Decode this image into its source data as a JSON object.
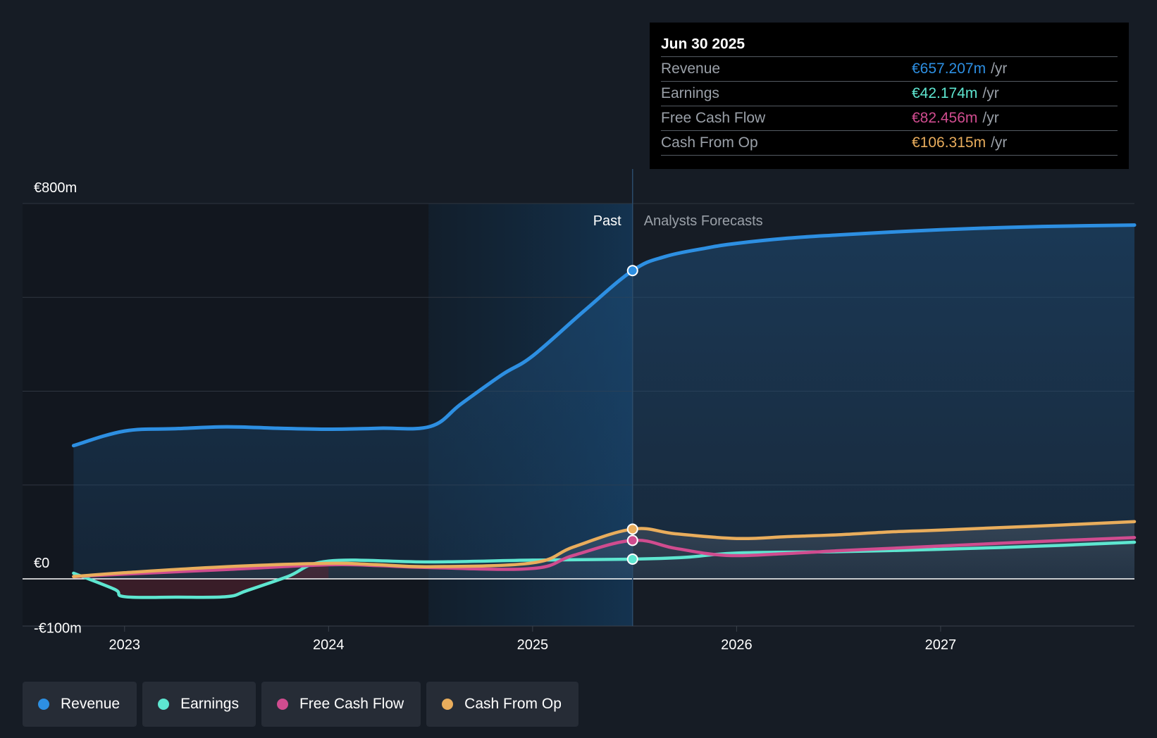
{
  "tooltip": {
    "date": "Jun 30 2025",
    "rows": [
      {
        "name": "Revenue",
        "value": "€657.207m",
        "unit": "/yr",
        "color": "#2d8fe2"
      },
      {
        "name": "Earnings",
        "value": "€42.174m",
        "unit": "/yr",
        "color": "#5ee6d0"
      },
      {
        "name": "Free Cash Flow",
        "value": "€82.456m",
        "unit": "/yr",
        "color": "#d04c8f"
      },
      {
        "name": "Cash From Op",
        "value": "€106.315m",
        "unit": "/yr",
        "color": "#e9ad5c"
      }
    ]
  },
  "legend": [
    {
      "label": "Revenue",
      "color": "#2d8fe2"
    },
    {
      "label": "Earnings",
      "color": "#5ee6d0"
    },
    {
      "label": "Free Cash Flow",
      "color": "#d04c8f"
    },
    {
      "label": "Cash From Op",
      "color": "#e9ad5c"
    }
  ],
  "chart_data": {
    "type": "line",
    "title": "",
    "y_labels": {
      "top": "€800m",
      "zero": "€0",
      "bottom": "-€100m"
    },
    "ylim": [
      -100,
      800
    ],
    "xlim": [
      2022.5,
      2027.95
    ],
    "x_ticks": [
      2023,
      2024,
      2025,
      2026,
      2027
    ],
    "x_tick_labels": [
      "2023",
      "2024",
      "2025",
      "2026",
      "2027"
    ],
    "region_labels": {
      "past": "Past",
      "forecast": "Analysts Forecasts"
    },
    "past_end": 2025.49,
    "highlight_start": 2024.49,
    "series": [
      {
        "name": "Revenue",
        "color": "#2d8fe2",
        "fill": true,
        "points": [
          [
            2022.75,
            284
          ],
          [
            2023.0,
            315
          ],
          [
            2023.25,
            320
          ],
          [
            2023.5,
            324
          ],
          [
            2023.75,
            321
          ],
          [
            2024.0,
            319
          ],
          [
            2024.25,
            321
          ],
          [
            2024.5,
            325
          ],
          [
            2024.65,
            373
          ],
          [
            2024.85,
            435
          ],
          [
            2025.0,
            475
          ],
          [
            2025.25,
            570
          ],
          [
            2025.49,
            657
          ],
          [
            2025.65,
            687
          ],
          [
            2025.85,
            705
          ],
          [
            2026.0,
            715
          ],
          [
            2026.25,
            726
          ],
          [
            2026.5,
            733
          ],
          [
            2026.75,
            739
          ],
          [
            2027.0,
            744
          ],
          [
            2027.25,
            748
          ],
          [
            2027.5,
            751
          ],
          [
            2027.95,
            754
          ]
        ]
      },
      {
        "name": "Earnings",
        "color": "#5ee6d0",
        "points": [
          [
            2022.75,
            12
          ],
          [
            2022.95,
            -22
          ],
          [
            2023.0,
            -38
          ],
          [
            2023.25,
            -39
          ],
          [
            2023.5,
            -38
          ],
          [
            2023.6,
            -25
          ],
          [
            2023.8,
            5
          ],
          [
            2024.0,
            38
          ],
          [
            2024.5,
            36
          ],
          [
            2025.0,
            40
          ],
          [
            2025.49,
            42
          ],
          [
            2025.75,
            46
          ],
          [
            2026.0,
            55
          ],
          [
            2026.5,
            58
          ],
          [
            2027.0,
            63
          ],
          [
            2027.5,
            70
          ],
          [
            2027.95,
            78
          ]
        ]
      },
      {
        "name": "Free Cash Flow",
        "color": "#d04c8f",
        "points": [
          [
            2022.75,
            5
          ],
          [
            2023.0,
            10
          ],
          [
            2023.5,
            20
          ],
          [
            2024.0,
            30
          ],
          [
            2024.25,
            28
          ],
          [
            2024.5,
            24
          ],
          [
            2025.0,
            22
          ],
          [
            2025.2,
            50
          ],
          [
            2025.49,
            82
          ],
          [
            2025.7,
            65
          ],
          [
            2025.95,
            50
          ],
          [
            2026.25,
            54
          ],
          [
            2026.5,
            60
          ],
          [
            2026.75,
            65
          ],
          [
            2027.0,
            70
          ],
          [
            2027.5,
            80
          ],
          [
            2027.95,
            88
          ]
        ]
      },
      {
        "name": "Cash From Op",
        "color": "#e9ad5c",
        "points": [
          [
            2022.75,
            5
          ],
          [
            2023.0,
            13
          ],
          [
            2023.5,
            26
          ],
          [
            2024.0,
            33
          ],
          [
            2024.25,
            30
          ],
          [
            2024.5,
            26
          ],
          [
            2025.0,
            34
          ],
          [
            2025.2,
            68
          ],
          [
            2025.49,
            106
          ],
          [
            2025.7,
            96
          ],
          [
            2026.0,
            86
          ],
          [
            2026.25,
            90
          ],
          [
            2026.5,
            94
          ],
          [
            2026.75,
            100
          ],
          [
            2027.0,
            104
          ],
          [
            2027.5,
            113
          ],
          [
            2027.95,
            122
          ]
        ]
      }
    ],
    "markers_at": 2025.49
  }
}
